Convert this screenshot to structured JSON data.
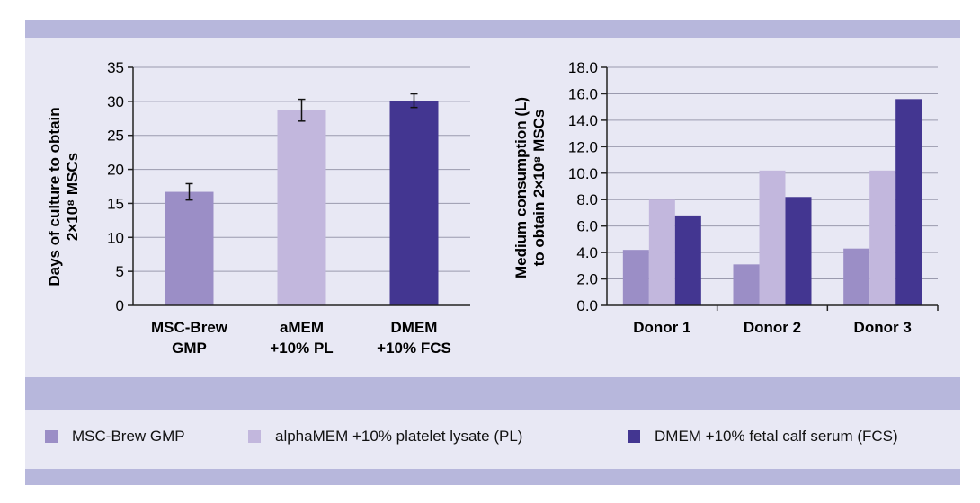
{
  "colors": {
    "s1": "#9b8ec6",
    "s2": "#c2b7dd",
    "s3": "#433691",
    "grid": "#9a9aae",
    "axis": "#222222"
  },
  "legend": [
    {
      "label": "MSC-Brew GMP",
      "color": "#9b8ec6"
    },
    {
      "label": "alphaMEM +10% platelet lysate (PL)",
      "color": "#c2b7dd"
    },
    {
      "label": "DMEM +10% fetal calf serum (FCS)",
      "color": "#433691"
    }
  ],
  "chart_data": [
    {
      "type": "bar",
      "ylabel_line1": "Days of culture to obtain",
      "ylabel_line2": "2×10⁸ MSCs",
      "ylim": [
        0,
        35
      ],
      "yticks": [
        "0",
        "5",
        "10",
        "15",
        "20",
        "25",
        "30",
        "35"
      ],
      "ytick_values": [
        0,
        5,
        10,
        15,
        20,
        25,
        30,
        35
      ],
      "categories": [
        {
          "line1": "MSC-Brew",
          "line2": "GMP"
        },
        {
          "line1": "aMEM",
          "line2": "+10% PL"
        },
        {
          "line1": "DMEM",
          "line2": "+10% FCS"
        }
      ],
      "values": [
        16.7,
        28.7,
        30.1
      ],
      "errors": [
        1.2,
        1.6,
        1.0
      ],
      "colors": [
        "#9b8ec6",
        "#c2b7dd",
        "#433691"
      ],
      "grid": true
    },
    {
      "type": "bar",
      "ylabel_line1": "Medium consumption (L)",
      "ylabel_line2": "to obtain 2×10⁸ MSCs",
      "ylim": [
        0,
        18
      ],
      "yticks": [
        "0.0",
        "2.0",
        "4.0",
        "6.0",
        "8.0",
        "10.0",
        "12.0",
        "14.0",
        "16.0",
        "18.0"
      ],
      "ytick_values": [
        0,
        2,
        4,
        6,
        8,
        10,
        12,
        14,
        16,
        18
      ],
      "categories": [
        "Donor 1",
        "Donor 2",
        "Donor 3"
      ],
      "series": [
        {
          "name": "MSC-Brew GMP",
          "values": [
            4.2,
            3.1,
            4.3
          ],
          "color": "#9b8ec6"
        },
        {
          "name": "alphaMEM +10% platelet lysate (PL)",
          "values": [
            8.0,
            10.2,
            10.2
          ],
          "color": "#c2b7dd"
        },
        {
          "name": "DMEM +10% fetal calf serum (FCS)",
          "values": [
            6.8,
            8.2,
            15.6
          ],
          "color": "#433691"
        }
      ],
      "grid": true
    }
  ]
}
